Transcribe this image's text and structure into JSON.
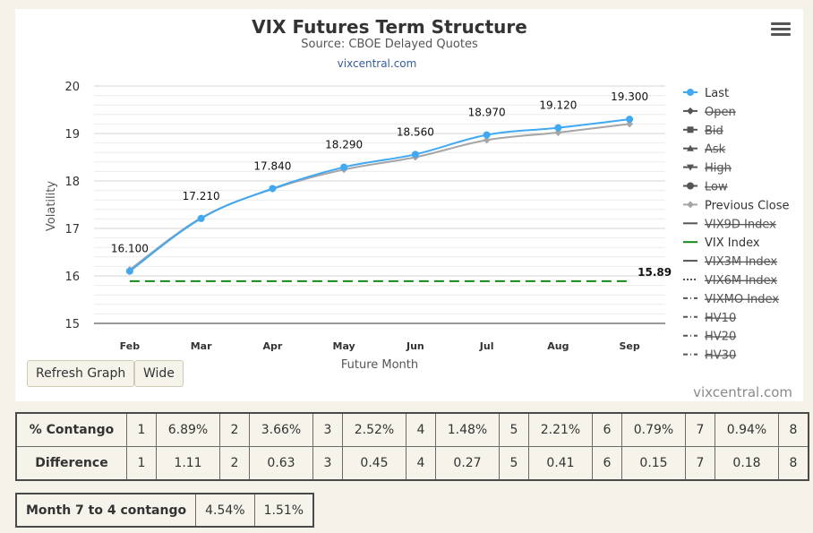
{
  "chart": {
    "title": "VIX Futures Term Structure",
    "subtitle": "Source: CBOE Delayed Quotes",
    "link_text": "vixcentral.com",
    "credit": "vixcentral.com",
    "menu_icon": "hamburger-menu-icon"
  },
  "chart_data": {
    "type": "line",
    "title": "VIX Futures Term Structure",
    "subtitle": "Source: CBOE Delayed Quotes",
    "xlabel": "Future Month",
    "ylabel": "Volatility",
    "categories": [
      "Feb",
      "Mar",
      "Apr",
      "May",
      "Jun",
      "Jul",
      "Aug",
      "Sep"
    ],
    "ylim": [
      15,
      20
    ],
    "yticks": [
      15,
      16,
      17,
      18,
      19,
      20
    ],
    "grid": true,
    "legend_position": "right",
    "series": [
      {
        "name": "Last",
        "values": [
          16.1,
          17.21,
          17.84,
          18.29,
          18.56,
          18.97,
          19.12,
          19.3
        ],
        "color": "#3fa9f5",
        "labels": [
          "16.100",
          "17.210",
          "17.840",
          "18.290",
          "18.560",
          "18.970",
          "19.120",
          "19.300"
        ]
      },
      {
        "name": "Previous Close",
        "values": [
          16.13,
          17.22,
          17.83,
          18.24,
          18.5,
          18.86,
          19.02,
          19.2
        ],
        "color": "#a6a6a6"
      }
    ],
    "vix_index": {
      "name": "VIX Index",
      "value": 15.89,
      "label": "15.89",
      "color": "#138a13"
    }
  },
  "legend": [
    {
      "label": "Last",
      "enabled": true,
      "symbol": "line-circle",
      "color": "#3fa9f5"
    },
    {
      "label": "Open",
      "enabled": false,
      "symbol": "line-diamond",
      "color": "#555555"
    },
    {
      "label": "Bid",
      "enabled": false,
      "symbol": "line-square",
      "color": "#555555"
    },
    {
      "label": "Ask",
      "enabled": false,
      "symbol": "line-triangle",
      "color": "#555555"
    },
    {
      "label": "High",
      "enabled": false,
      "symbol": "line-triangle-down",
      "color": "#555555"
    },
    {
      "label": "Low",
      "enabled": false,
      "symbol": "line-circle",
      "color": "#555555"
    },
    {
      "label": "Previous Close",
      "enabled": true,
      "symbol": "line-diamond",
      "color": "#a6a6a6"
    },
    {
      "label": "VIX9D Index",
      "enabled": false,
      "symbol": "solid",
      "color": "#555555"
    },
    {
      "label": "VIX Index",
      "enabled": true,
      "symbol": "solid",
      "color": "#138a13"
    },
    {
      "label": "VIX3M Index",
      "enabled": false,
      "symbol": "solid",
      "color": "#555555"
    },
    {
      "label": "VIX6M Index",
      "enabled": false,
      "symbol": "dotted",
      "color": "#555555"
    },
    {
      "label": "VIXMO Index",
      "enabled": false,
      "symbol": "dash-dot",
      "color": "#555555"
    },
    {
      "label": "HV10",
      "enabled": false,
      "symbol": "dash-dot",
      "color": "#555555"
    },
    {
      "label": "HV20",
      "enabled": false,
      "symbol": "dash-dot",
      "color": "#555555"
    },
    {
      "label": "HV30",
      "enabled": false,
      "symbol": "dash-dot",
      "color": "#555555"
    }
  ],
  "buttons": {
    "refresh": "Refresh Graph",
    "wide": "Wide"
  },
  "contango_table": {
    "rows": [
      {
        "header": "% Contango",
        "cells": [
          "1",
          "6.89%",
          "2",
          "3.66%",
          "3",
          "2.52%",
          "4",
          "1.48%",
          "5",
          "2.21%",
          "6",
          "0.79%",
          "7",
          "0.94%",
          "8"
        ]
      },
      {
        "header": "Difference",
        "cells": [
          "1",
          "1.11",
          "2",
          "0.63",
          "3",
          "0.45",
          "4",
          "0.27",
          "5",
          "0.41",
          "6",
          "0.15",
          "7",
          "0.18",
          "8"
        ]
      }
    ]
  },
  "month_7_to_4": {
    "header": "Month 7 to 4 contango",
    "values": [
      "4.54%",
      "1.51%"
    ]
  }
}
